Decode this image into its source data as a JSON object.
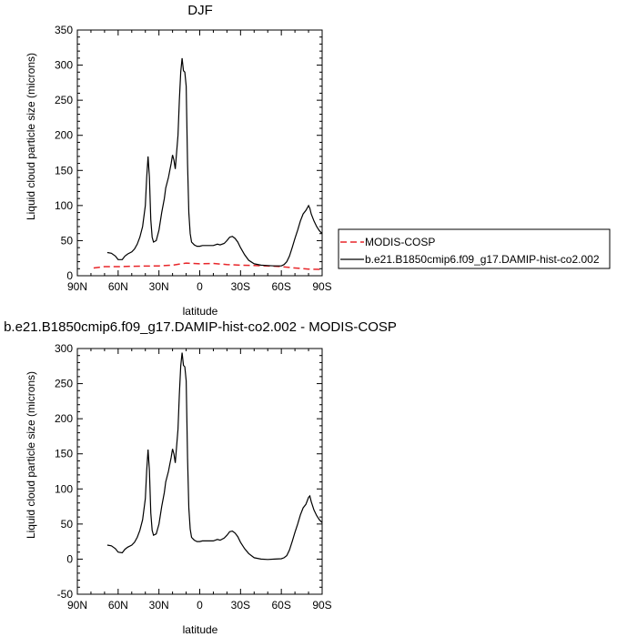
{
  "chart_data": [
    {
      "type": "line",
      "title": "DJF",
      "xlabel": "latitude",
      "ylabel": "Liquid cloud particle size (microns)",
      "xlim": [
        90,
        -90
      ],
      "ylim": [
        0,
        350
      ],
      "yticks": [
        0,
        50,
        100,
        150,
        200,
        250,
        300,
        350
      ],
      "xticks": [
        {
          "value": 90,
          "label": "90N"
        },
        {
          "value": 60,
          "label": "60N"
        },
        {
          "value": 30,
          "label": "30N"
        },
        {
          "value": 0,
          "label": "0"
        },
        {
          "value": -30,
          "label": "30S"
        },
        {
          "value": -60,
          "label": "60S"
        },
        {
          "value": -90,
          "label": "90S"
        }
      ],
      "legend": {
        "position": "right",
        "entries": [
          {
            "label": "MODIS-COSP",
            "color": "#e8262a",
            "style": "dashed"
          },
          {
            "label": "b.e21.B1850cmip6.f09_g17.DAMIP-hist-co2.002",
            "color": "#000000",
            "style": "solid"
          }
        ]
      },
      "series": [
        {
          "name": "MODIS-COSP",
          "color": "#e8262a",
          "style": "dashed",
          "x": [
            78,
            70,
            60,
            50,
            40,
            30,
            20,
            10,
            0,
            -10,
            -20,
            -30,
            -40,
            -50,
            -60,
            -70,
            -80,
            -90
          ],
          "y": [
            11,
            13,
            13,
            13.5,
            13.8,
            14,
            15,
            18,
            17,
            17.5,
            16,
            15,
            14.5,
            14,
            13,
            11,
            9.5,
            9
          ]
        },
        {
          "name": "b.e21.B1850cmip6.f09_g17.DAMIP-hist-co2.002",
          "color": "#000000",
          "style": "solid",
          "x": [
            68,
            65,
            62,
            60,
            57,
            55,
            53,
            50,
            48,
            46,
            44,
            42,
            40,
            39,
            38,
            37,
            36,
            35,
            34,
            32,
            30,
            28,
            26,
            25,
            23,
            22,
            21,
            20,
            19,
            18,
            16,
            15,
            14,
            13,
            12,
            11,
            10,
            9,
            8,
            7,
            6,
            4,
            2,
            0,
            -2,
            -5,
            -8,
            -10,
            -13,
            -15,
            -18,
            -20,
            -22,
            -24,
            -26,
            -28,
            -30,
            -33,
            -36,
            -40,
            -45,
            -50,
            -55,
            -60,
            -62,
            -64,
            -66,
            -68,
            -70,
            -72,
            -74,
            -76,
            -78,
            -80,
            -81,
            -82,
            -84,
            -86,
            -88,
            -90
          ],
          "y": [
            33,
            32,
            28,
            23,
            23,
            28,
            31,
            34,
            38,
            45,
            55,
            70,
            100,
            140,
            170,
            140,
            80,
            55,
            48,
            50,
            65,
            90,
            110,
            125,
            140,
            150,
            160,
            172,
            165,
            152,
            200,
            250,
            290,
            310,
            292,
            290,
            270,
            160,
            90,
            60,
            48,
            44,
            42,
            42,
            43,
            43,
            43,
            43,
            45,
            44,
            46,
            50,
            55,
            56,
            53,
            48,
            40,
            30,
            22,
            17,
            15,
            14.5,
            14,
            14,
            16,
            20,
            28,
            40,
            53,
            65,
            78,
            88,
            93,
            100,
            96,
            88,
            78,
            70,
            64,
            60
          ]
        }
      ]
    },
    {
      "type": "line",
      "title": "b.e21.B1850cmip6.f09_g17.DAMIP-hist-co2.002 - MODIS-COSP",
      "xlabel": "latitude",
      "ylabel": "Liquid cloud particle size (microns)",
      "xlim": [
        90,
        -90
      ],
      "ylim": [
        -50,
        300
      ],
      "yticks": [
        -50,
        0,
        50,
        100,
        150,
        200,
        250,
        300
      ],
      "xticks": [
        {
          "value": 90,
          "label": "90N"
        },
        {
          "value": 60,
          "label": "60N"
        },
        {
          "value": 30,
          "label": "30N"
        },
        {
          "value": 0,
          "label": "0"
        },
        {
          "value": -30,
          "label": "30S"
        },
        {
          "value": -60,
          "label": "60S"
        },
        {
          "value": -90,
          "label": "90S"
        }
      ],
      "series": [
        {
          "color": "#000000",
          "style": "solid",
          "x": [
            68,
            65,
            62,
            60,
            57,
            55,
            53,
            50,
            48,
            46,
            44,
            42,
            40,
            39,
            38,
            37,
            36,
            35,
            34,
            32,
            30,
            28,
            26,
            25,
            23,
            22,
            21,
            20,
            19,
            18,
            16,
            15,
            14,
            13,
            12,
            11,
            10,
            9,
            8,
            7,
            6,
            4,
            2,
            0,
            -2,
            -5,
            -8,
            -10,
            -13,
            -15,
            -18,
            -20,
            -22,
            -24,
            -26,
            -28,
            -30,
            -33,
            -36,
            -40,
            -45,
            -50,
            -55,
            -60,
            -62,
            -64,
            -66,
            -68,
            -70,
            -72,
            -74,
            -76,
            -78,
            -80,
            -81,
            -82,
            -84,
            -86,
            -88,
            -90
          ],
          "y": [
            20,
            19,
            15,
            10,
            9,
            14,
            17,
            20,
            24,
            31,
            41,
            56,
            86,
            126,
            156,
            126,
            66,
            41,
            34,
            36,
            50,
            75,
            95,
            110,
            125,
            135,
            145,
            157,
            150,
            137,
            185,
            235,
            275,
            294,
            276,
            274,
            254,
            144,
            73,
            43,
            31,
            27,
            25,
            25,
            26,
            26,
            26,
            26,
            28,
            27,
            30,
            34,
            39,
            40,
            37,
            32,
            24,
            15,
            8,
            2,
            0,
            -0.5,
            0,
            0.5,
            2,
            5,
            13,
            25,
            38,
            50,
            63,
            73,
            78,
            88,
            90,
            82,
            70,
            62,
            56,
            52
          ]
        }
      ]
    }
  ]
}
